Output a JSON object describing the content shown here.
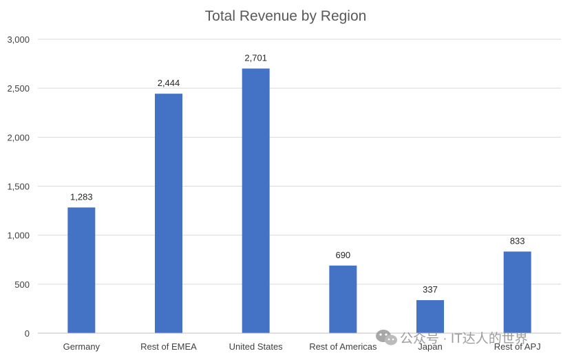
{
  "chart_data": {
    "type": "bar",
    "title": "Total Revenue by Region",
    "categories": [
      "Germany",
      "Rest of EMEA",
      "United States",
      "Rest of Americas",
      "Japan",
      "Rest of APJ"
    ],
    "values": [
      1283,
      2444,
      2701,
      690,
      337,
      833
    ],
    "value_labels": [
      "1,283",
      "2,444",
      "2,701",
      "690",
      "337",
      "833"
    ],
    "y_ticks": [
      0,
      500,
      1000,
      1500,
      2000,
      2500,
      3000
    ],
    "y_tick_labels": [
      "0",
      "500",
      "1,000",
      "1,500",
      "2,000",
      "2,500",
      "3,000"
    ],
    "ylim": [
      0,
      3000
    ],
    "xlabel": "",
    "ylabel": "",
    "grid": true,
    "legend": "none",
    "bar_color": "#4472c4"
  },
  "watermark": {
    "text": "公众号 · IT达人的世界",
    "icon": "wechat-icon"
  }
}
